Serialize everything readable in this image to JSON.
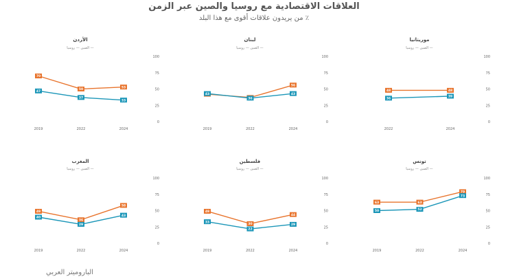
{
  "title": "العلاقات الاقتصادية مع روسيا والصين عبر الزمن",
  "subtitle": "٪ من يريدون علاقات أقوى مع هذا البلد",
  "source": "الباروميتر العربي",
  "colors": {
    "russia": "#e8742d",
    "china": "#1b96b8"
  },
  "legend": {
    "china": "الصين",
    "russia": "روسيا"
  },
  "chart_data": [
    {
      "type": "line",
      "title": "الأردن",
      "categories": [
        "2019",
        "2022",
        "2024"
      ],
      "ylim": [
        0,
        100
      ],
      "yticks": [
        0,
        25,
        50,
        75,
        100
      ],
      "series": [
        {
          "name": "روسيا",
          "key": "russia",
          "values": [
            70,
            50,
            53
          ]
        },
        {
          "name": "الصين",
          "key": "china",
          "values": [
            47,
            37,
            33
          ]
        }
      ]
    },
    {
      "type": "line",
      "title": "لبنان",
      "categories": [
        "2019",
        "2022",
        "2024"
      ],
      "ylim": [
        0,
        100
      ],
      "yticks": [
        0,
        25,
        50,
        75,
        100
      ],
      "series": [
        {
          "name": "روسيا",
          "key": "russia",
          "values": [
            42,
            37,
            56
          ]
        },
        {
          "name": "الصين",
          "key": "china",
          "values": [
            43,
            36,
            43
          ]
        }
      ]
    },
    {
      "type": "line",
      "title": "موريتانيا",
      "categories": [
        "2022",
        "2024"
      ],
      "ylim": [
        0,
        100
      ],
      "yticks": [
        0,
        25,
        50,
        75,
        100
      ],
      "series": [
        {
          "name": "روسيا",
          "key": "russia",
          "values": [
            48,
            48
          ]
        },
        {
          "name": "الصين",
          "key": "china",
          "values": [
            36,
            39
          ]
        }
      ]
    },
    {
      "type": "line",
      "title": "المغرب",
      "categories": [
        "2019",
        "2022",
        "2024"
      ],
      "ylim": [
        0,
        100
      ],
      "yticks": [
        0,
        25,
        50,
        75,
        100
      ],
      "series": [
        {
          "name": "روسيا",
          "key": "russia",
          "values": [
            49,
            36,
            58
          ]
        },
        {
          "name": "الصين",
          "key": "china",
          "values": [
            40,
            29,
            43
          ]
        }
      ]
    },
    {
      "type": "line",
      "title": "فلسطين",
      "categories": [
        "2019",
        "2022",
        "2024"
      ],
      "ylim": [
        0,
        100
      ],
      "yticks": [
        0,
        25,
        50,
        75,
        100
      ],
      "series": [
        {
          "name": "روسيا",
          "key": "russia",
          "values": [
            49,
            30,
            44
          ]
        },
        {
          "name": "الصين",
          "key": "china",
          "values": [
            33,
            22,
            29
          ]
        }
      ]
    },
    {
      "type": "line",
      "title": "تونس",
      "categories": [
        "2019",
        "2022",
        "2024"
      ],
      "ylim": [
        0,
        100
      ],
      "yticks": [
        0,
        25,
        50,
        75,
        100
      ],
      "series": [
        {
          "name": "روسيا",
          "key": "russia",
          "values": [
            63,
            63,
            79
          ]
        },
        {
          "name": "الصين",
          "key": "china",
          "values": [
            50,
            52,
            73
          ]
        }
      ]
    }
  ]
}
